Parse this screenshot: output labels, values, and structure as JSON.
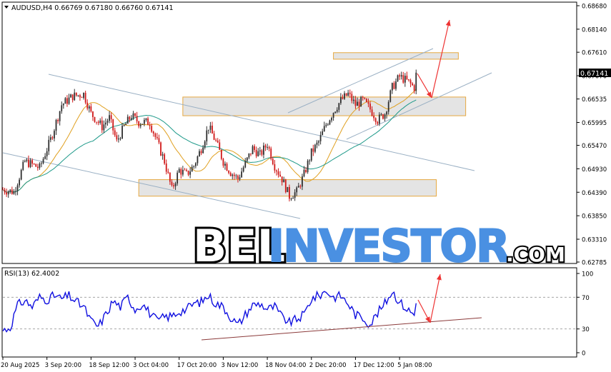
{
  "chart_data": {
    "type": "candlestick",
    "main": {
      "header": "AUDUSD,H4  0.66769 0.67180 0.66760 0.67141",
      "last_price": "0.67141",
      "y_ticks": [
        0.6868,
        0.6814,
        0.6761,
        0.6707,
        0.66535,
        0.65995,
        0.6547,
        0.6493,
        0.6439,
        0.6385,
        0.6331,
        0.62785
      ],
      "y_tick_labels": [
        "0.68680",
        "0.68140",
        "0.67610",
        "0.67070",
        "0.66535",
        "0.65995",
        "0.65470",
        "0.64930",
        "0.64390",
        "0.63850",
        "0.63310",
        "0.62785"
      ],
      "ylim": [
        0.62785,
        0.6868
      ],
      "n_bars": 225,
      "anchors": [
        [
          0,
          0.6445
        ],
        [
          6,
          0.644
        ],
        [
          12,
          0.651
        ],
        [
          20,
          0.6495
        ],
        [
          26,
          0.656
        ],
        [
          32,
          0.664
        ],
        [
          38,
          0.666
        ],
        [
          44,
          0.6665
        ],
        [
          48,
          0.662
        ],
        [
          54,
          0.659
        ],
        [
          58,
          0.661
        ],
        [
          62,
          0.6555
        ],
        [
          66,
          0.659
        ],
        [
          70,
          0.6615
        ],
        [
          74,
          0.66
        ],
        [
          80,
          0.66
        ],
        [
          84,
          0.6555
        ],
        [
          88,
          0.651
        ],
        [
          92,
          0.6445
        ],
        [
          96,
          0.649
        ],
        [
          100,
          0.648
        ],
        [
          104,
          0.65
        ],
        [
          108,
          0.654
        ],
        [
          112,
          0.659
        ],
        [
          116,
          0.6555
        ],
        [
          120,
          0.651
        ],
        [
          124,
          0.6485
        ],
        [
          128,
          0.647
        ],
        [
          132,
          0.6505
        ],
        [
          136,
          0.654
        ],
        [
          140,
          0.6525
        ],
        [
          144,
          0.655
        ],
        [
          148,
          0.65
        ],
        [
          152,
          0.647
        ],
        [
          156,
          0.643
        ],
        [
          160,
          0.644
        ],
        [
          164,
          0.648
        ],
        [
          168,
          0.653
        ],
        [
          172,
          0.6555
        ],
        [
          176,
          0.6595
        ],
        [
          180,
          0.6625
        ],
        [
          184,
          0.665
        ],
        [
          188,
          0.6665
        ],
        [
          192,
          0.664
        ],
        [
          196,
          0.665
        ],
        [
          200,
          0.663
        ],
        [
          204,
          0.6605
        ],
        [
          208,
          0.662
        ],
        [
          212,
          0.668
        ],
        [
          216,
          0.6705
        ],
        [
          220,
          0.6695
        ],
        [
          224,
          0.668
        ],
        [
          226,
          0.6714
        ]
      ]
    },
    "rsi": {
      "label": "RSI(13) 62.4002",
      "y_ticks": [
        100,
        70,
        30,
        0
      ],
      "y_tick_labels": [
        "100",
        "70",
        "30",
        "0"
      ],
      "ylim": [
        0,
        100
      ],
      "levels": [
        70,
        30
      ],
      "anchors": [
        [
          0,
          28
        ],
        [
          4,
          32
        ],
        [
          8,
          60
        ],
        [
          12,
          66
        ],
        [
          16,
          58
        ],
        [
          20,
          70
        ],
        [
          24,
          67
        ],
        [
          28,
          72
        ],
        [
          32,
          68
        ],
        [
          36,
          72
        ],
        [
          40,
          64
        ],
        [
          44,
          58
        ],
        [
          48,
          40
        ],
        [
          52,
          33
        ],
        [
          56,
          48
        ],
        [
          60,
          65
        ],
        [
          64,
          58
        ],
        [
          68,
          70
        ],
        [
          72,
          55
        ],
        [
          76,
          62
        ],
        [
          80,
          50
        ],
        [
          84,
          40
        ],
        [
          88,
          45
        ],
        [
          92,
          46
        ],
        [
          96,
          52
        ],
        [
          100,
          55
        ],
        [
          104,
          62
        ],
        [
          108,
          64
        ],
        [
          112,
          72
        ],
        [
          116,
          62
        ],
        [
          120,
          58
        ],
        [
          124,
          45
        ],
        [
          128,
          35
        ],
        [
          132,
          48
        ],
        [
          136,
          60
        ],
        [
          140,
          62
        ],
        [
          144,
          55
        ],
        [
          148,
          58
        ],
        [
          152,
          45
        ],
        [
          156,
          38
        ],
        [
          160,
          42
        ],
        [
          164,
          48
        ],
        [
          168,
          68
        ],
        [
          172,
          72
        ],
        [
          176,
          78
        ],
        [
          180,
          70
        ],
        [
          184,
          72
        ],
        [
          188,
          62
        ],
        [
          192,
          48
        ],
        [
          196,
          44
        ],
        [
          200,
          36
        ],
        [
          204,
          50
        ],
        [
          208,
          62
        ],
        [
          212,
          78
        ],
        [
          216,
          64
        ],
        [
          220,
          55
        ],
        [
          224,
          48
        ],
        [
          226,
          62.4
        ]
      ]
    },
    "x_tick_labels": [
      "20 Aug 2025",
      "3 Sep 20:00",
      "18 Sep 12:00",
      "3 Oct 04:00",
      "17 Oct 20:00",
      "3 Nov 12:00",
      "18 Nov 04:00",
      "2 Dec 20:00",
      "17 Dec 12:00",
      "5 Jan 08:00"
    ],
    "x_tick_bars": [
      0,
      24,
      48,
      72,
      96,
      120,
      144,
      168,
      192,
      216
    ],
    "zones": [
      {
        "x": [
          180,
          248
        ],
        "y": [
          0.676,
          0.6745
        ]
      },
      {
        "x": [
          98,
          252
        ],
        "y": [
          0.6658,
          0.6615
        ]
      },
      {
        "x": [
          74,
          236
        ],
        "y": [
          0.6468,
          0.643
        ]
      }
    ],
    "colors": {
      "bull": "#2f2f2f",
      "bear": "#d01818",
      "ma_fast": "#e0a020",
      "ma_slow": "#1f9a8a",
      "channel": "#9ab0c4",
      "zone_fill": "#e4e4e4",
      "zone_border": "#e6a840",
      "arrow": "#ee3333",
      "rsi_line": "#1010e0",
      "rsi_trend": "#8b3a3a",
      "grid": "#999999"
    },
    "watermark": {
      "part1": "BEL",
      "part2": "INVESTOR",
      "part3": ".COM"
    }
  }
}
